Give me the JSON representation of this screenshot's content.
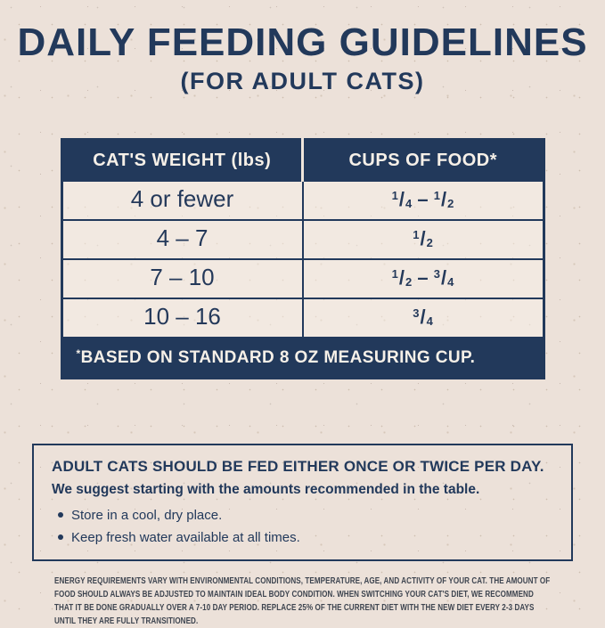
{
  "page": {
    "title": "DAILY FEEDING GUIDELINES",
    "subtitle": "(FOR ADULT CATS)"
  },
  "colors": {
    "navy": "#22395B",
    "cream_text": "#F6F0E8",
    "background": "#ECE1D9"
  },
  "table": {
    "columns": [
      "CAT'S WEIGHT (lbs)",
      "CUPS OF FOOD*"
    ],
    "rows": [
      {
        "weight": "4 or fewer",
        "cups": "1/4 – 1/2"
      },
      {
        "weight": "4 – 7",
        "cups": "1/2"
      },
      {
        "weight": "7 – 10",
        "cups": "1/2 – 3/4"
      },
      {
        "weight": "10 – 16",
        "cups": "3/4"
      }
    ],
    "footnote": "*BASED ON STANDARD 8 OZ MEASURING CUP."
  },
  "advice": {
    "heading": "ADULT CATS SHOULD BE FED EITHER ONCE OR TWICE PER DAY.",
    "subheading": "We suggest starting with the amounts recommended in the table.",
    "bullets": [
      "Store in a cool, dry place.",
      "Keep fresh water available at all times."
    ]
  },
  "fine_print": "ENERGY REQUIREMENTS VARY WITH ENVIRONMENTAL CONDITIONS, TEMPERATURE, AGE, AND ACTIVITY OF YOUR CAT. THE AMOUNT OF FOOD SHOULD ALWAYS BE ADJUSTED TO MAINTAIN IDEAL BODY CONDITION. WHEN SWITCHING YOUR CAT'S DIET, WE RECOMMEND THAT IT BE DONE GRADUALLY OVER A 7-10 DAY PERIOD. REPLACE 25% OF THE CURRENT DIET WITH THE NEW DIET EVERY 2-3 DAYS UNTIL THEY ARE FULLY TRANSITIONED."
}
